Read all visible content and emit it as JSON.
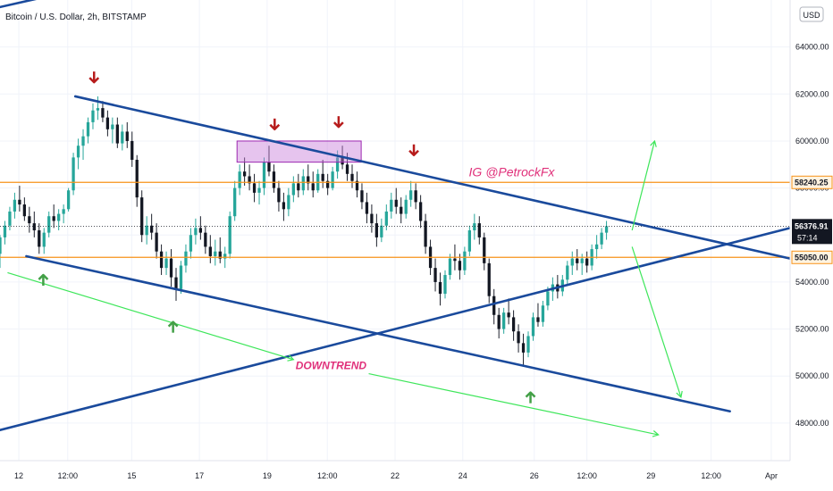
{
  "chart_data": {
    "type": "candlestick",
    "title": "Bitcoin / U.S. Dollar, 2h, BITSTAMP",
    "currency": "USD",
    "y_ticks": [
      48000,
      50000,
      52000,
      54000,
      56000,
      58000,
      60000,
      62000,
      64000
    ],
    "y_tick_labels": [
      "48000.00",
      "50000.00",
      "52000.00",
      "54000.00",
      "56000.00",
      "58000.00",
      "60000.00",
      "62000.00",
      "64000.00"
    ],
    "ylim": [
      46400,
      66000
    ],
    "x_tick_labels": [
      "12",
      "12:00",
      "15",
      "17",
      "19",
      "12:00",
      "22",
      "24",
      "26",
      "12:00",
      "29",
      "12:00",
      "Apr"
    ],
    "x_tick_positions": [
      0.5,
      1.8,
      3.5,
      5.3,
      7.1,
      8.7,
      10.5,
      12.3,
      14.2,
      15.6,
      17.3,
      18.9,
      20.5
    ],
    "xlim": [
      0,
      21
    ],
    "price_levels": [
      {
        "label": "58240.25",
        "value": 58240.25,
        "color": "#f7931a"
      },
      {
        "label": "55050.00",
        "value": 55050.0,
        "color": "#f7931a"
      }
    ],
    "last_price": {
      "label": "56376.91",
      "value": 56376.91,
      "countdown": "57:14"
    },
    "trendlines": [
      {
        "name": "descending-upper",
        "color": "#1a4a9c",
        "points": [
          [
            2,
            61900
          ],
          [
            21,
            55000
          ]
        ]
      },
      {
        "name": "descending-lower",
        "color": "#1a4a9c",
        "points": [
          [
            0.7,
            55100
          ],
          [
            19.4,
            48500
          ]
        ]
      },
      {
        "name": "ascending",
        "color": "#1a4a9c",
        "points": [
          [
            0,
            47700
          ],
          [
            21,
            56300
          ]
        ]
      },
      {
        "name": "top-left-fragment",
        "color": "#1a4a9c",
        "points": [
          [
            0,
            65700
          ],
          [
            2.5,
            66600
          ]
        ]
      }
    ],
    "projections": [
      {
        "color": "#3ee65a",
        "points": [
          [
            0.2,
            54400
          ],
          [
            7.8,
            50700
          ]
        ]
      },
      {
        "color": "#3ee65a",
        "points": [
          [
            9.8,
            50100
          ],
          [
            17.5,
            47500
          ]
        ]
      },
      {
        "color": "#3ee65a",
        "points": [
          [
            16.8,
            56200
          ],
          [
            17.4,
            60000
          ]
        ]
      },
      {
        "color": "#3ee65a",
        "points": [
          [
            16.8,
            55500
          ],
          [
            18.1,
            49100
          ]
        ]
      }
    ],
    "resistance_box": {
      "x": [
        6.3,
        9.6
      ],
      "y": [
        59100,
        60000
      ],
      "color": "#c77dd9"
    },
    "arrows_down": [
      [
        2.5,
        62500
      ],
      [
        7.3,
        60500
      ],
      [
        9.0,
        60600
      ],
      [
        11.0,
        59400
      ]
    ],
    "arrows_up": [
      [
        1.15,
        54300
      ],
      [
        4.6,
        52300
      ],
      [
        14.1,
        49300
      ]
    ],
    "annotations": [
      {
        "text": "IG @PetrockFx",
        "x": 13.6,
        "y": 58500,
        "color": "#e0307a"
      },
      {
        "text": "DOWNTREND",
        "x": 8.8,
        "y": 50300,
        "color": "#e0307a"
      }
    ],
    "candles": [
      [
        0.0,
        55200,
        56000,
        54600,
        55900
      ],
      [
        0.13,
        55900,
        56600,
        55600,
        56400
      ],
      [
        0.26,
        56400,
        57200,
        56200,
        57000
      ],
      [
        0.39,
        57000,
        57800,
        56700,
        57500
      ],
      [
        0.52,
        57500,
        58100,
        57000,
        57300
      ],
      [
        0.65,
        57300,
        57600,
        56600,
        56800
      ],
      [
        0.78,
        56800,
        57200,
        56100,
        56500
      ],
      [
        0.91,
        56500,
        57000,
        55900,
        56200
      ],
      [
        1.04,
        56200,
        56500,
        55200,
        55500
      ],
      [
        1.17,
        55500,
        56300,
        55200,
        56100
      ],
      [
        1.3,
        56100,
        57000,
        55900,
        56800
      ],
      [
        1.43,
        56800,
        57300,
        56300,
        56600
      ],
      [
        1.56,
        56600,
        57100,
        56200,
        56900
      ],
      [
        1.69,
        56900,
        57300,
        56500,
        57100
      ],
      [
        1.82,
        57100,
        58000,
        57000,
        57900
      ],
      [
        1.95,
        57900,
        59500,
        57700,
        59300
      ],
      [
        2.08,
        59300,
        60100,
        58800,
        59800
      ],
      [
        2.21,
        59800,
        60500,
        59200,
        60200
      ],
      [
        2.34,
        60200,
        61000,
        59900,
        60800
      ],
      [
        2.47,
        60800,
        61600,
        60500,
        61300
      ],
      [
        2.6,
        61300,
        61900,
        60900,
        61400
      ],
      [
        2.73,
        61400,
        61700,
        60800,
        61000
      ],
      [
        2.86,
        61000,
        61300,
        60200,
        60500
      ],
      [
        2.99,
        60500,
        61000,
        59900,
        60700
      ],
      [
        3.12,
        60700,
        61000,
        59700,
        59900
      ],
      [
        3.25,
        59900,
        60700,
        59600,
        60400
      ],
      [
        3.38,
        60400,
        60800,
        59700,
        60000
      ],
      [
        3.51,
        60000,
        60400,
        58900,
        59200
      ],
      [
        3.64,
        59200,
        59400,
        57200,
        57600
      ],
      [
        3.77,
        57600,
        57900,
        55700,
        56000
      ],
      [
        3.9,
        56000,
        56800,
        55600,
        56400
      ],
      [
        4.03,
        56400,
        56900,
        55800,
        56100
      ],
      [
        4.16,
        56100,
        56500,
        55000,
        55300
      ],
      [
        4.29,
        55300,
        55600,
        54300,
        54600
      ],
      [
        4.42,
        54600,
        55300,
        54300,
        55000
      ],
      [
        4.55,
        55000,
        55400,
        53800,
        54200
      ],
      [
        4.68,
        54200,
        54600,
        53200,
        53700
      ],
      [
        4.81,
        53700,
        54900,
        53500,
        54700
      ],
      [
        4.94,
        54700,
        55600,
        54400,
        55300
      ],
      [
        5.07,
        55300,
        56300,
        55000,
        56000
      ],
      [
        5.2,
        56000,
        56700,
        55600,
        56300
      ],
      [
        5.33,
        56300,
        56800,
        55800,
        56100
      ],
      [
        5.46,
        56100,
        56400,
        55200,
        55500
      ],
      [
        5.59,
        55500,
        56000,
        54800,
        55100
      ],
      [
        5.72,
        55100,
        55800,
        54700,
        55300
      ],
      [
        5.85,
        55300,
        55900,
        54800,
        55000
      ],
      [
        5.98,
        55000,
        55500,
        54600,
        55200
      ],
      [
        6.11,
        55200,
        57000,
        55000,
        56800
      ],
      [
        6.24,
        56800,
        58300,
        56600,
        58000
      ],
      [
        6.37,
        58000,
        59000,
        57700,
        58700
      ],
      [
        6.5,
        58700,
        59300,
        58100,
        58500
      ],
      [
        6.63,
        58500,
        59000,
        57900,
        58200
      ],
      [
        6.76,
        58200,
        58600,
        57400,
        57800
      ],
      [
        6.89,
        57800,
        58300,
        57300,
        58000
      ],
      [
        7.02,
        58000,
        59300,
        57700,
        59100
      ],
      [
        7.15,
        59100,
        59800,
        58500,
        58700
      ],
      [
        7.28,
        58700,
        59000,
        57800,
        58000
      ],
      [
        7.41,
        58000,
        58300,
        57000,
        57400
      ],
      [
        7.54,
        57400,
        57800,
        56600,
        57100
      ],
      [
        7.67,
        57100,
        58000,
        56800,
        57700
      ],
      [
        7.8,
        57700,
        58500,
        57400,
        58200
      ],
      [
        7.93,
        58200,
        58600,
        57600,
        57900
      ],
      [
        8.06,
        57900,
        58800,
        57700,
        58500
      ],
      [
        8.19,
        58500,
        59000,
        57900,
        58200
      ],
      [
        8.32,
        58200,
        58700,
        57600,
        57900
      ],
      [
        8.45,
        57900,
        58800,
        57800,
        58600
      ],
      [
        8.58,
        58600,
        59200,
        58000,
        58300
      ],
      [
        8.71,
        58300,
        58600,
        57700,
        58000
      ],
      [
        8.84,
        58000,
        58900,
        57900,
        58700
      ],
      [
        8.97,
        58700,
        59600,
        58400,
        59300
      ],
      [
        9.1,
        59300,
        59800,
        58800,
        59000
      ],
      [
        9.23,
        59000,
        59500,
        58300,
        58600
      ],
      [
        9.36,
        58600,
        59000,
        58000,
        58300
      ],
      [
        9.49,
        58300,
        58700,
        57600,
        57900
      ],
      [
        9.62,
        57900,
        58200,
        57100,
        57400
      ],
      [
        9.75,
        57400,
        57800,
        56500,
        56900
      ],
      [
        9.88,
        56900,
        57300,
        56100,
        56500
      ],
      [
        10.01,
        56500,
        56900,
        55500,
        55900
      ],
      [
        10.14,
        55900,
        56700,
        55700,
        56400
      ],
      [
        10.27,
        56400,
        57300,
        56200,
        57000
      ],
      [
        10.4,
        57000,
        57800,
        56700,
        57500
      ],
      [
        10.53,
        57500,
        58000,
        56900,
        57200
      ],
      [
        10.66,
        57200,
        57600,
        56500,
        56900
      ],
      [
        10.79,
        56900,
        57700,
        56700,
        57500
      ],
      [
        10.92,
        57500,
        58300,
        57200,
        57900
      ],
      [
        11.05,
        57900,
        58200,
        57100,
        57400
      ],
      [
        11.18,
        57400,
        57700,
        56300,
        56600
      ],
      [
        11.31,
        56600,
        56900,
        55200,
        55500
      ],
      [
        11.44,
        55500,
        55800,
        54300,
        54600
      ],
      [
        11.57,
        54600,
        55000,
        53600,
        54000
      ],
      [
        11.7,
        54000,
        54400,
        53000,
        53500
      ],
      [
        11.83,
        53500,
        54500,
        53300,
        54300
      ],
      [
        11.96,
        54300,
        55200,
        54100,
        55000
      ],
      [
        12.09,
        55000,
        55600,
        54500,
        54900
      ],
      [
        12.22,
        54900,
        55200,
        54100,
        54500
      ],
      [
        12.35,
        54500,
        55500,
        54300,
        55300
      ],
      [
        12.48,
        55300,
        56400,
        55100,
        56200
      ],
      [
        12.61,
        56200,
        56900,
        55800,
        56500
      ],
      [
        12.74,
        56500,
        56800,
        55600,
        55900
      ],
      [
        12.87,
        55900,
        56100,
        54500,
        54800
      ],
      [
        13.0,
        54800,
        55000,
        53100,
        53400
      ],
      [
        13.13,
        53400,
        53700,
        52200,
        52600
      ],
      [
        13.26,
        52600,
        52900,
        51600,
        52000
      ],
      [
        13.39,
        52000,
        52900,
        51800,
        52700
      ],
      [
        13.52,
        52700,
        53300,
        52200,
        52500
      ],
      [
        13.65,
        52500,
        52800,
        51500,
        51900
      ],
      [
        13.78,
        51900,
        52200,
        51000,
        51400
      ],
      [
        13.91,
        51400,
        51800,
        50400,
        51000
      ],
      [
        14.04,
        51000,
        51900,
        50800,
        51700
      ],
      [
        14.17,
        51700,
        52700,
        51500,
        52500
      ],
      [
        14.3,
        52500,
        53100,
        52100,
        52300
      ],
      [
        14.43,
        52300,
        53200,
        52100,
        53000
      ],
      [
        14.56,
        53000,
        53800,
        52800,
        53600
      ],
      [
        14.69,
        53600,
        54200,
        53200,
        53900
      ],
      [
        14.82,
        53900,
        54300,
        53300,
        53600
      ],
      [
        14.95,
        53600,
        54300,
        53400,
        54100
      ],
      [
        15.08,
        54100,
        54900,
        53900,
        54700
      ],
      [
        15.21,
        54700,
        55300,
        54300,
        55000
      ],
      [
        15.34,
        55000,
        55400,
        54500,
        54800
      ],
      [
        15.47,
        54800,
        55200,
        54300,
        55000
      ],
      [
        15.6,
        55000,
        55300,
        54400,
        54700
      ],
      [
        15.73,
        54700,
        55600,
        54500,
        55400
      ],
      [
        15.86,
        55400,
        56000,
        55000,
        55600
      ],
      [
        15.99,
        55600,
        56300,
        55400,
        56100
      ],
      [
        16.12,
        56100,
        56600,
        55800,
        56377
      ]
    ]
  }
}
